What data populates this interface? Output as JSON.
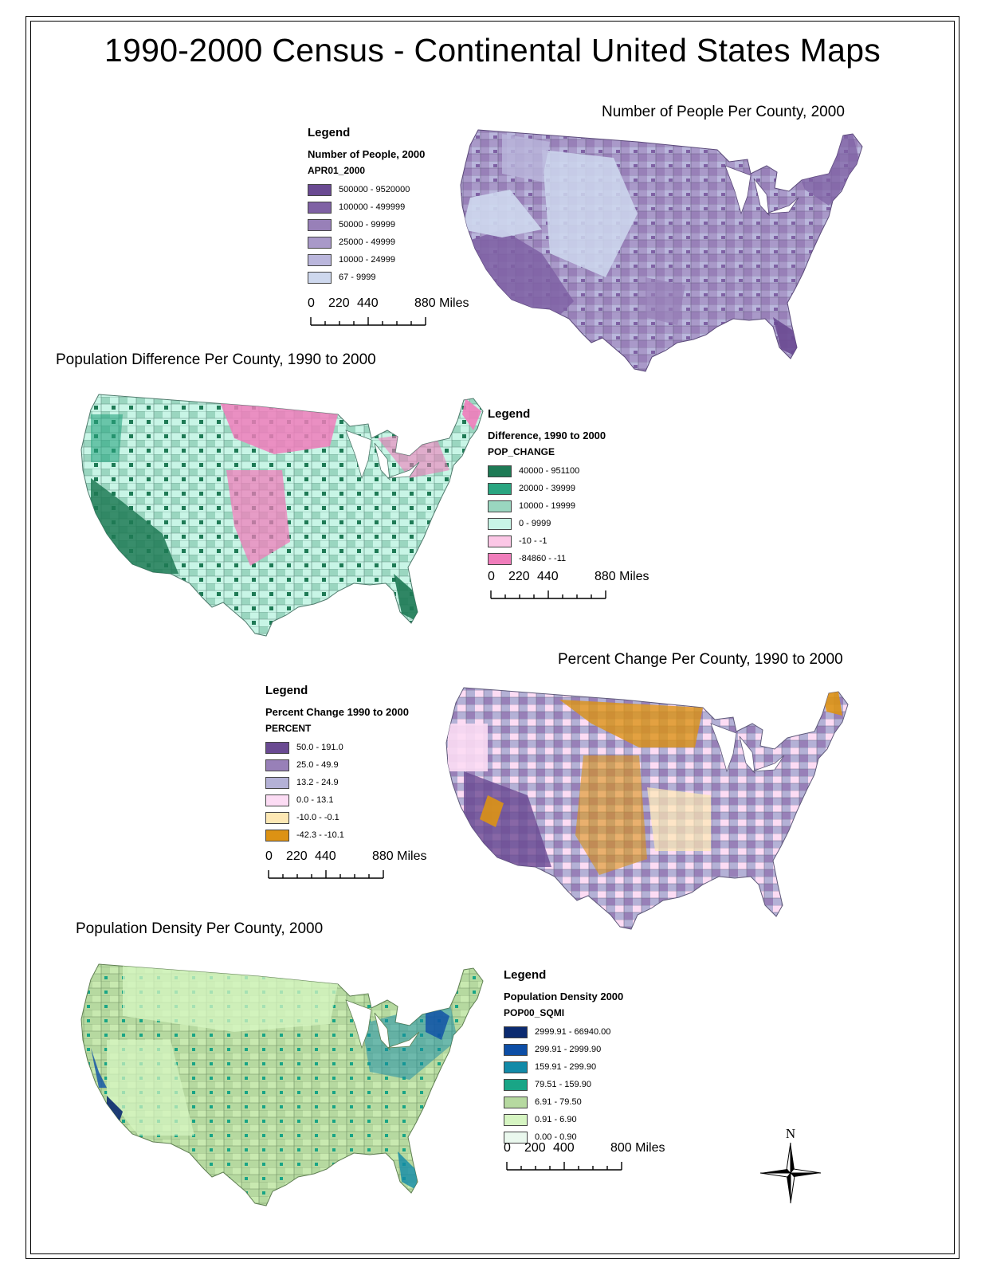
{
  "page_title": "1990-2000 Census - Continental United States Maps",
  "maps": [
    {
      "title": "Number of People Per County, 2000",
      "legend_heading": "Legend",
      "legend_field": "Number of People, 2000",
      "legend_attr": "APR01_2000",
      "classes": [
        {
          "label": "500000 - 9520000",
          "color": "#6a4a92"
        },
        {
          "label": "100000 - 499999",
          "color": "#7f61a4"
        },
        {
          "label": "50000 - 99999",
          "color": "#9880b8"
        },
        {
          "label": "25000 - 49999",
          "color": "#a999c9"
        },
        {
          "label": "10000 - 24999",
          "color": "#bab6dc"
        },
        {
          "label": "67 - 9999",
          "color": "#ced8ee"
        }
      ],
      "scale": {
        "zero": "0",
        "a": "220",
        "b": "440",
        "end": "880 Miles"
      }
    },
    {
      "title": "Population Difference Per County, 1990 to 2000",
      "legend_heading": "Legend",
      "legend_field": "Difference, 1990 to 2000",
      "legend_attr": "POP_CHANGE",
      "classes": [
        {
          "label": "40000 - 951100",
          "color": "#1e7a55"
        },
        {
          "label": "20000 - 39999",
          "color": "#2aa580"
        },
        {
          "label": "10000 - 19999",
          "color": "#9ad6c0"
        },
        {
          "label": "0 - 9999",
          "color": "#c8f5e6"
        },
        {
          "label": "-10 - -1",
          "color": "#fcc7e6"
        },
        {
          "label": "-84860 - -11",
          "color": "#f07dbb"
        }
      ],
      "scale": {
        "zero": "0",
        "a": "220",
        "b": "440",
        "end": "880 Miles"
      }
    },
    {
      "title": "Percent Change Per County, 1990 to 2000",
      "legend_heading": "Legend",
      "legend_field": "Percent Change 1990 to 2000",
      "legend_attr": "PERCENT",
      "classes": [
        {
          "label": "50.0 - 191.0",
          "color": "#6a4a92"
        },
        {
          "label": "25.0 - 49.9",
          "color": "#9880b8"
        },
        {
          "label": "13.2 - 24.9",
          "color": "#b4b1d6"
        },
        {
          "label": "0.0 - 13.1",
          "color": "#fcdcf4"
        },
        {
          "label": "-10.0 - -0.1",
          "color": "#fde8b4"
        },
        {
          "label": "-42.3 - -10.1",
          "color": "#dc9214"
        }
      ],
      "scale": {
        "zero": "0",
        "a": "220",
        "b": "440",
        "end": "880 Miles"
      }
    },
    {
      "title": "Population Density Per County, 2000",
      "legend_heading": "Legend",
      "legend_field": "Population Density 2000",
      "legend_attr": "POP00_SQMI",
      "classes": [
        {
          "label": "2999.91 - 66940.00",
          "color": "#0b2a70"
        },
        {
          "label": "299.91 - 2999.90",
          "color": "#0d4ea6"
        },
        {
          "label": "159.91 - 299.90",
          "color": "#128aa8"
        },
        {
          "label": "79.51 - 159.90",
          "color": "#19a586"
        },
        {
          "label": "6.91 - 79.50",
          "color": "#b6d9a0"
        },
        {
          "label": "0.91 - 6.90",
          "color": "#d6f5c2"
        },
        {
          "label": "0.00 - 0.90",
          "color": "#eaf8ee"
        }
      ],
      "scale": {
        "zero": "0",
        "a": "200",
        "b": "400",
        "end": "800 Miles"
      }
    }
  ],
  "north_label": "N"
}
